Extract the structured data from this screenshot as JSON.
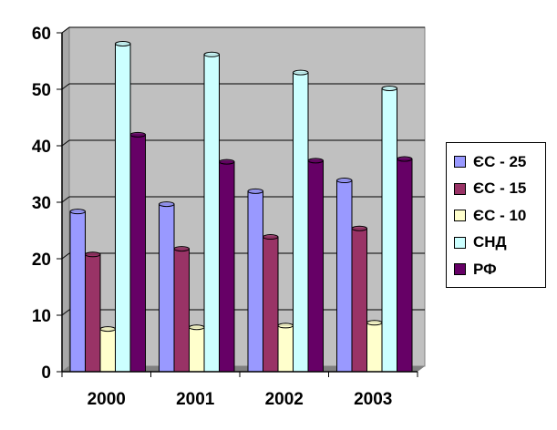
{
  "chart_data": {
    "type": "bar",
    "title": "",
    "xlabel": "",
    "ylabel": "",
    "categories": [
      "2000",
      "2001",
      "2002",
      "2003"
    ],
    "ylim": [
      0,
      60
    ],
    "yticks": [
      "0",
      "10",
      "20",
      "30",
      "40",
      "50",
      "60"
    ],
    "grid": true,
    "legend_position": "right",
    "series": [
      {
        "name": "ЄС - 25",
        "color": "#9999ff",
        "values": [
          28.2,
          29.5,
          31.8,
          33.7
        ]
      },
      {
        "name": "ЄС - 15",
        "color": "#993366",
        "values": [
          20.6,
          21.6,
          23.7,
          25.2
        ]
      },
      {
        "name": "ЄС - 10",
        "color": "#ffffcc",
        "values": [
          7.4,
          7.7,
          8.0,
          8.5
        ]
      },
      {
        "name": "СНД",
        "color": "#ccffff",
        "values": [
          57.9,
          56.0,
          52.8,
          50.0
        ]
      },
      {
        "name": "РФ",
        "color": "#660066",
        "values": [
          41.8,
          37.0,
          37.2,
          37.5
        ]
      }
    ]
  }
}
